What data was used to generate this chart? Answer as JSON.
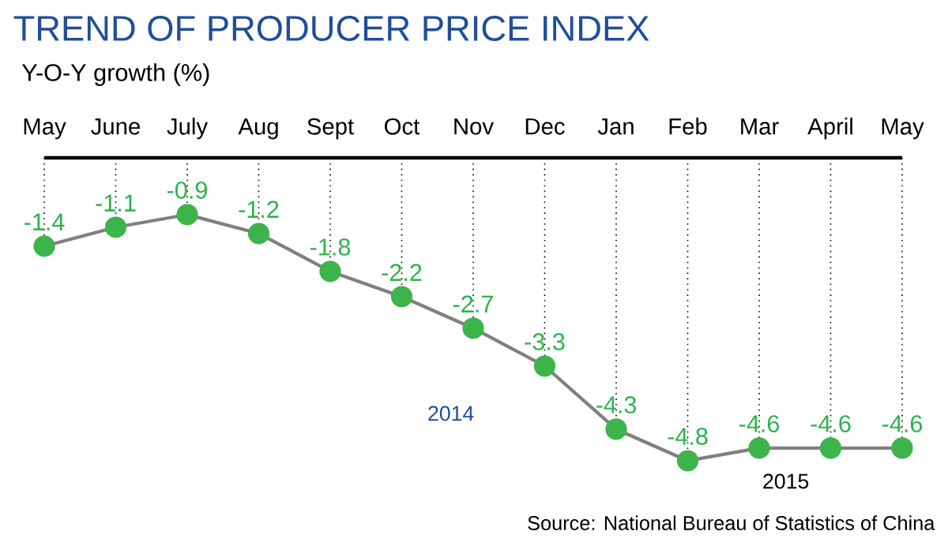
{
  "chart_data": {
    "type": "line",
    "title": "TREND OF PRODUCER PRICE INDEX",
    "subtitle": "Y-O-Y growth (%)",
    "categories": [
      "May",
      "June",
      "July",
      "Aug",
      "Sept",
      "Oct",
      "Nov",
      "Dec",
      "Jan",
      "Feb",
      "Mar",
      "April",
      "May"
    ],
    "series": [
      {
        "color": "#808080",
        "values": [
          -1.4,
          -1.1,
          -0.9,
          -1.2,
          -1.8,
          -2.2,
          -2.7,
          -3.3,
          -4.3,
          -4.8,
          -4.6,
          -4.6,
          -4.6
        ]
      }
    ],
    "data_labels": true,
    "marker": "circle",
    "line_style": "solid",
    "legend": false,
    "grid": "x",
    "annotations": [
      "2014",
      "2015",
      "Source: National Bureau of Statistics of China"
    ]
  }
}
